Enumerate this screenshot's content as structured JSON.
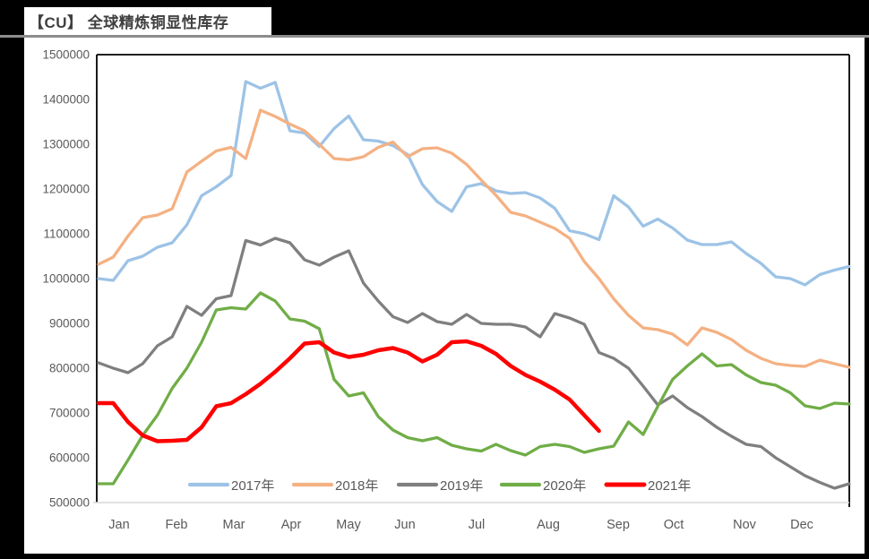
{
  "header": {
    "title": "【CU】 全球精炼铜显性库存"
  },
  "chart_data": {
    "type": "line",
    "title": "【CU】 全球精炼铜显性库存",
    "xlabel": "",
    "ylabel": "",
    "ylim": [
      500000,
      1500000
    ],
    "grid": false,
    "legend_position": "bottom-inside",
    "categories": [
      "Jan",
      "Feb",
      "Mar",
      "Apr",
      "May",
      "Jun",
      "Jul",
      "Aug",
      "Sep",
      "Oct",
      "Nov",
      "Dec"
    ],
    "y_axis": {
      "min": 500000,
      "max": 1500000,
      "step": 100000,
      "tick_labels": [
        "1500000",
        "1400000",
        "1300000",
        "1200000",
        "1100000",
        "1000000",
        "900000",
        "800000",
        "700000",
        "600000",
        "500000"
      ]
    },
    "x_unit": "week-of-year (52 weekly points per series)",
    "series": [
      {
        "name": "2017年",
        "color": "#9DC3E6",
        "values": [
          1000000,
          996000,
          1040000,
          1050000,
          1070000,
          1080000,
          1120000,
          1185000,
          1205000,
          1230000,
          1440000,
          1425000,
          1438000,
          1330000,
          1325000,
          1295000,
          1335000,
          1363000,
          1310000,
          1307000,
          1297000,
          1277000,
          1210000,
          1172000,
          1150000,
          1205000,
          1212000,
          1196000,
          1190000,
          1192000,
          1180000,
          1157000,
          1107000,
          1100000,
          1087000,
          1185000,
          1160000,
          1117000,
          1133000,
          1113000,
          1086000,
          1076000,
          1076000,
          1082000,
          1056000,
          1034000,
          1004000,
          1000000,
          986000,
          1009000,
          1019000,
          1027000
        ]
      },
      {
        "name": "2018年",
        "color": "#F4B183",
        "values": [
          1032000,
          1048000,
          1095000,
          1136000,
          1142000,
          1156000,
          1238000,
          1262000,
          1285000,
          1293000,
          1268000,
          1376000,
          1362000,
          1345000,
          1330000,
          1300000,
          1268000,
          1265000,
          1272000,
          1293000,
          1305000,
          1272000,
          1290000,
          1292000,
          1280000,
          1255000,
          1220000,
          1186000,
          1148000,
          1140000,
          1126000,
          1112000,
          1090000,
          1038000,
          1000000,
          955000,
          918000,
          890000,
          886000,
          876000,
          852000,
          890000,
          880000,
          864000,
          840000,
          822000,
          810000,
          806000,
          804000,
          818000,
          810000,
          802000
        ]
      },
      {
        "name": "2019年",
        "color": "#7F7F7F",
        "values": [
          812000,
          800000,
          790000,
          810000,
          850000,
          870000,
          938000,
          918000,
          955000,
          962000,
          1085000,
          1075000,
          1090000,
          1080000,
          1042000,
          1030000,
          1048000,
          1062000,
          990000,
          950000,
          915000,
          902000,
          922000,
          904000,
          898000,
          920000,
          900000,
          898000,
          898000,
          892000,
          870000,
          922000,
          912000,
          898000,
          835000,
          822000,
          800000,
          760000,
          718000,
          738000,
          712000,
          692000,
          668000,
          648000,
          630000,
          625000,
          600000,
          580000,
          560000,
          545000,
          532000,
          542000
        ]
      },
      {
        "name": "2020年",
        "color": "#70AD47",
        "values": [
          542000,
          542000,
          595000,
          650000,
          695000,
          755000,
          800000,
          858000,
          930000,
          935000,
          932000,
          968000,
          950000,
          910000,
          905000,
          888000,
          775000,
          738000,
          745000,
          692000,
          662000,
          645000,
          638000,
          645000,
          628000,
          620000,
          615000,
          630000,
          616000,
          606000,
          625000,
          630000,
          625000,
          612000,
          620000,
          626000,
          680000,
          652000,
          715000,
          775000,
          805000,
          832000,
          805000,
          808000,
          785000,
          768000,
          762000,
          745000,
          716000,
          710000,
          722000,
          720000
        ]
      },
      {
        "name": "2021年",
        "color": "#FF0000",
        "values": [
          722000,
          722000,
          680000,
          650000,
          637000,
          638000,
          640000,
          668000,
          715000,
          722000,
          742000,
          765000,
          792000,
          822000,
          855000,
          858000,
          835000,
          825000,
          830000,
          840000,
          845000,
          835000,
          815000,
          830000,
          858000,
          860000,
          850000,
          832000,
          805000,
          785000,
          770000,
          752000,
          730000,
          695000,
          660000
        ]
      }
    ]
  }
}
